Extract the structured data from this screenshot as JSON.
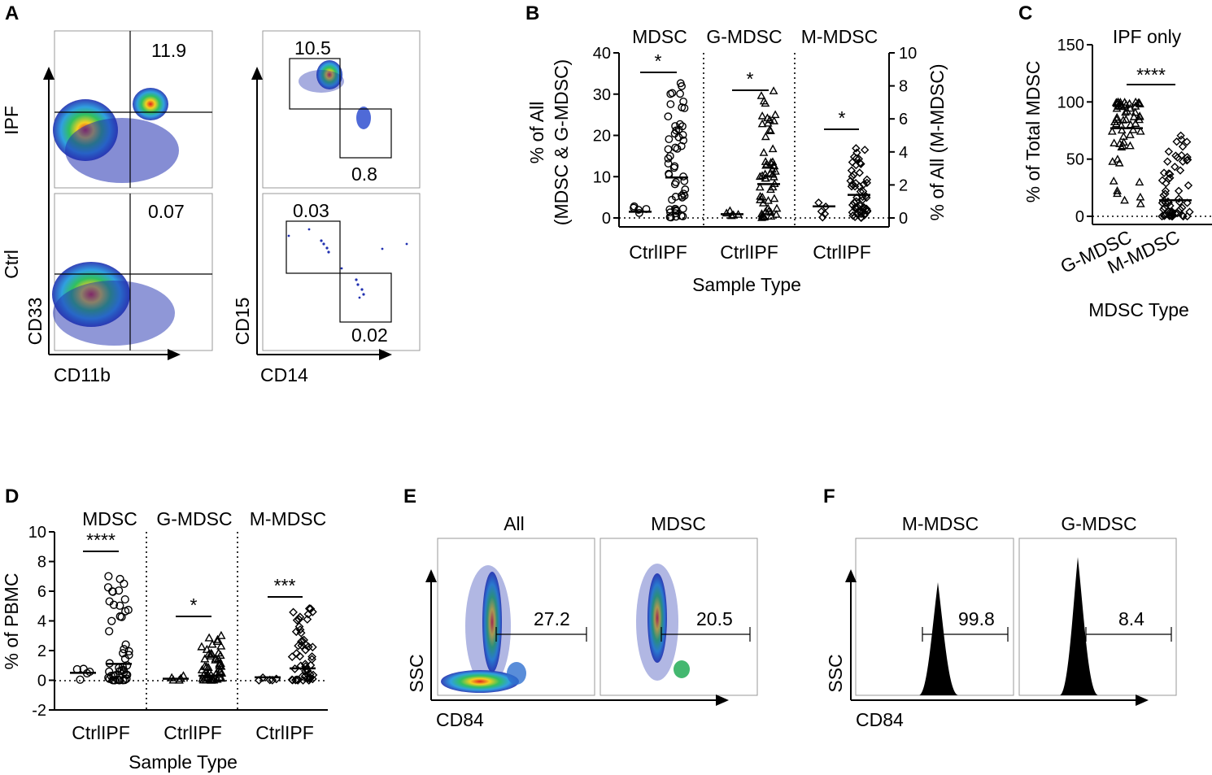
{
  "panels": {
    "A": {
      "label": "A",
      "row_labels": [
        "IPF",
        "Ctrl"
      ],
      "left_x_axis": "CD11b",
      "left_y_axis": "CD33",
      "right_x_axis": "CD14",
      "right_y_axis": "CD15",
      "ipf_cd33": "11.9",
      "ctrl_cd33": "0.07",
      "ipf_cd15_high": "10.5",
      "ipf_cd14_high": "0.8",
      "ctrl_cd15_high": "0.03",
      "ctrl_cd14_high": "0.02"
    },
    "B": {
      "label": "B",
      "groups": [
        "MDSC",
        "G-MDSC",
        "M-MDSC"
      ],
      "xlabel": "Sample Type",
      "ylabel_left_line1": "% of All",
      "ylabel_left_line2": "(MDSC & G-MDSC)",
      "ylabel_right": "% of All (M-MDSC)",
      "left_ticks": [
        "0",
        "10",
        "20",
        "30",
        "40"
      ],
      "right_ticks": [
        "0",
        "2",
        "4",
        "6",
        "8",
        "10"
      ],
      "x_tick_labels": [
        "CtrlIPF",
        "CtrlIPF",
        "CtrlIPF"
      ],
      "significance": [
        "*",
        "*",
        "*"
      ]
    },
    "C": {
      "label": "C",
      "title": "IPF only",
      "ylabel": "% of Total MDSC",
      "xlabel": "MDSC Type",
      "categories": [
        "G-MDSC",
        "M-MDSC"
      ],
      "ticks": [
        "0",
        "50",
        "100",
        "150"
      ],
      "significance": "****"
    },
    "D": {
      "label": "D",
      "groups": [
        "MDSC",
        "G-MDSC",
        "M-MDSC"
      ],
      "ylabel": "% of PBMC",
      "xlabel": "Sample Type",
      "ticks": [
        "-2",
        "0",
        "2",
        "4",
        "6",
        "8",
        "10"
      ],
      "x_tick_labels": [
        "CtrlIPF",
        "CtrlIPF",
        "CtrlIPF"
      ],
      "significance": [
        "****",
        "*",
        "***"
      ]
    },
    "E": {
      "label": "E",
      "subpanels": [
        "All",
        "MDSC"
      ],
      "xlabel": "CD84",
      "ylabel": "SSC",
      "values": [
        "27.2",
        "20.5"
      ]
    },
    "F": {
      "label": "F",
      "subpanels": [
        "M-MDSC",
        "G-MDSC"
      ],
      "xlabel": "CD84",
      "ylabel": "SSC",
      "values": [
        "99.8",
        "8.4"
      ]
    }
  },
  "chart_data": [
    {
      "type": "scatter",
      "title": "B",
      "xlabel": "Sample Type",
      "ylabel": "% of All (MDSC & G-MDSC); right axis % of All (M-MDSC)",
      "ylim": [
        0,
        40
      ],
      "y2lim": [
        0,
        10
      ],
      "categories": [
        "MDSC Ctrl",
        "MDSC IPF",
        "G-MDSC Ctrl",
        "G-MDSC IPF",
        "M-MDSC Ctrl",
        "M-MDSC IPF"
      ],
      "means": [
        1.5,
        9.8,
        0.9,
        8.2,
        0.7,
        1.4
      ],
      "axis": [
        "left",
        "left",
        "left",
        "left",
        "right",
        "right"
      ]
    },
    {
      "type": "scatter",
      "title": "IPF only",
      "xlabel": "MDSC Type",
      "ylabel": "% of Total MDSC",
      "ylim": [
        0,
        150
      ],
      "categories": [
        "G-MDSC",
        "M-MDSC"
      ],
      "means": [
        77,
        14
      ]
    },
    {
      "type": "scatter",
      "title": "D",
      "xlabel": "Sample Type",
      "ylabel": "% of PBMC",
      "ylim": [
        -2,
        10
      ],
      "categories": [
        "MDSC Ctrl",
        "MDSC IPF",
        "G-MDSC Ctrl",
        "G-MDSC IPF",
        "M-MDSC Ctrl",
        "M-MDSC IPF"
      ],
      "means": [
        0.5,
        1.1,
        0.1,
        0.3,
        0.2,
        0.8
      ]
    }
  ]
}
